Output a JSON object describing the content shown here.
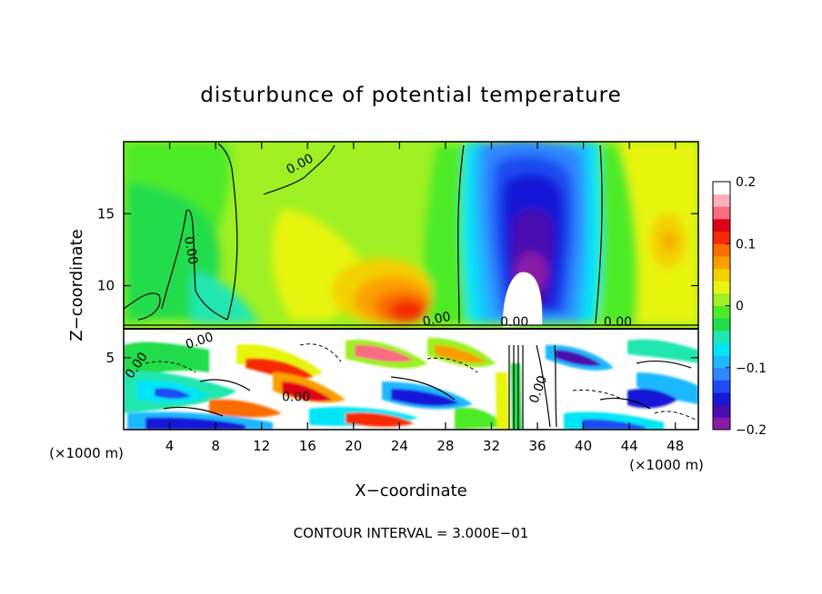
{
  "chart_data": {
    "type": "heatmap",
    "title": "disturbunce of potential temperature",
    "xlabel": "X−coordinate",
    "ylabel": "Z−coordinate",
    "x_unit": "(×1000 m)",
    "x_unit_right": "(×1000 m)",
    "footer": "CONTOUR INTERVAL = 3.000E−01",
    "xlim": [
      0,
      50
    ],
    "ylim": [
      0,
      20
    ],
    "x_ticks": [
      4,
      8,
      12,
      16,
      20,
      24,
      28,
      32,
      36,
      40,
      44,
      48
    ],
    "y_ticks": [
      5,
      10,
      15
    ],
    "colorbar": {
      "min": -0.2,
      "max": 0.2,
      "ticks": [
        {
          "value": 0.2,
          "label": "0.2"
        },
        {
          "value": 0.1,
          "label": "0.1"
        },
        {
          "value": 0,
          "label": "0"
        },
        {
          "value": -0.1,
          "label": "−0.1"
        },
        {
          "value": -0.2,
          "label": "−0.2"
        }
      ],
      "colors": [
        "#8b1aa8",
        "#4a0db0",
        "#1818d8",
        "#1f4cf2",
        "#2f86ff",
        "#1fb8ff",
        "#00e5f5",
        "#20e6b0",
        "#22dc4c",
        "#4eea28",
        "#9ef023",
        "#e7f40f",
        "#f3d000",
        "#fb9f00",
        "#fb6c00",
        "#f52a00",
        "#e00018",
        "#fa6c80",
        "#fcb0b8",
        "#ffffff"
      ]
    },
    "contour_labels": [
      {
        "text": "0.00",
        "x": 15.5,
        "z": 18.2,
        "rotate": -28
      },
      {
        "text": "0.00",
        "x": 5.5,
        "z": 12.4,
        "rotate": 80
      },
      {
        "text": "0.00",
        "x": 6.7,
        "z": 5.9,
        "rotate": -18
      },
      {
        "text": "0.00",
        "x": 1.4,
        "z": 4.3,
        "rotate": -55
      },
      {
        "text": "0.00",
        "x": 15.0,
        "z": 2.0,
        "rotate": 0
      },
      {
        "text": "0.00",
        "x": 27.3,
        "z": 7.4,
        "rotate": -12
      },
      {
        "text": "0.00",
        "x": 34.0,
        "z": 7.2,
        "rotate": 0
      },
      {
        "text": "0.00",
        "x": 43.0,
        "z": 7.2,
        "rotate": 0
      },
      {
        "text": "0.00",
        "x": 36.4,
        "z": 2.7,
        "rotate": -70
      }
    ]
  }
}
